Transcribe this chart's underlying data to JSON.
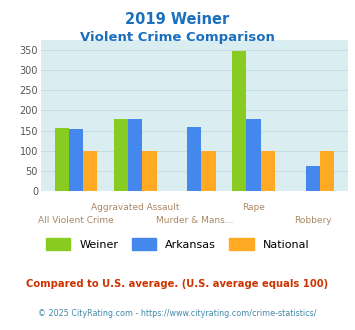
{
  "title_line1": "2019 Weiner",
  "title_line2": "Violent Crime Comparison",
  "categories": [
    "All Violent Crime",
    "Aggravated Assault",
    "Murder & Mans...",
    "Rape",
    "Robbery"
  ],
  "series": {
    "Weiner": [
      157,
      178,
      0,
      347,
      0
    ],
    "Arkansas": [
      153,
      180,
      160,
      180,
      63
    ],
    "National": [
      100,
      100,
      100,
      100,
      100
    ]
  },
  "colors": {
    "Weiner": "#88cc22",
    "Arkansas": "#4488ee",
    "National": "#ffaa22"
  },
  "ylim": [
    0,
    375
  ],
  "yticks": [
    0,
    50,
    100,
    150,
    200,
    250,
    300,
    350
  ],
  "grid_color": "#c5dde0",
  "bg_color": "#daedf0",
  "title_color": "#1a6fbf",
  "xlabel_color": "#aa8866",
  "footnote1": "Compared to U.S. average. (U.S. average equals 100)",
  "footnote2": "© 2025 CityRating.com - https://www.cityrating.com/crime-statistics/",
  "footnote1_color": "#cc3300",
  "footnote2_color": "#4488aa",
  "top_labels": [
    null,
    "Aggravated Assault",
    null,
    "Rape",
    null
  ],
  "bottom_labels": [
    "All Violent Crime",
    null,
    "Murder & Mans...",
    null,
    "Robbery"
  ]
}
